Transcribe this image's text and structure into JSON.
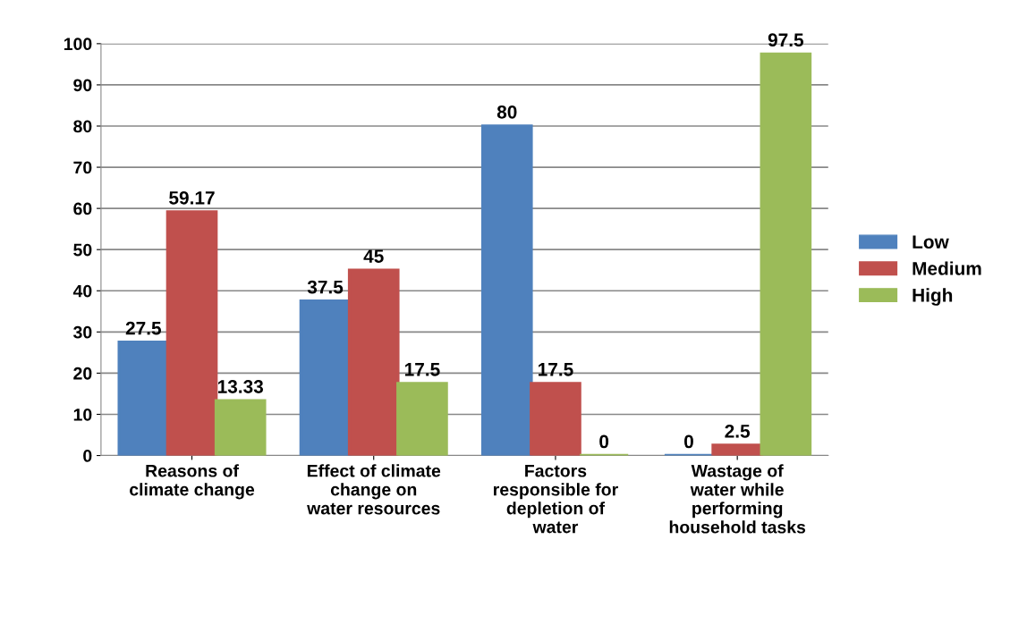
{
  "chart_data": {
    "type": "bar",
    "categories": [
      "Reasons of\nclimate change",
      "Effect of climate\nchange on\nwater resources",
      "Factors\nresponsible for\ndepletion of\nwater",
      "Wastage of\nwater while\nperforming\nhousehold tasks"
    ],
    "series": [
      {
        "name": "Low",
        "color": "#4f81bd",
        "values": [
          27.5,
          37.5,
          80,
          0
        ]
      },
      {
        "name": "Medium",
        "color": "#c0504d",
        "values": [
          59.17,
          45,
          17.5,
          2.5
        ]
      },
      {
        "name": "High",
        "color": "#9bbb59",
        "values": [
          13.33,
          17.5,
          0,
          97.5
        ]
      }
    ],
    "ylim": [
      0,
      100
    ],
    "yticks": [
      0,
      10,
      20,
      30,
      40,
      50,
      60,
      70,
      80,
      90,
      100
    ],
    "grid": "y",
    "legend": "right",
    "data_labels": true
  }
}
